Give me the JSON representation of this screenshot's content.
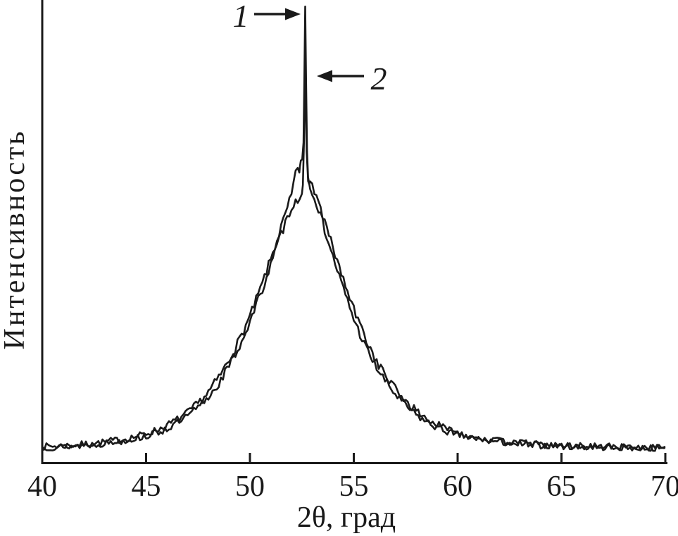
{
  "chart_data": {
    "type": "line",
    "title": "",
    "xlabel": "2θ, град",
    "ylabel": "Интенсивность",
    "xlim": [
      40,
      70
    ],
    "ylim": [
      0,
      105
    ],
    "x_ticks": [
      "40",
      "45",
      "50",
      "55",
      "60",
      "65",
      "70"
    ],
    "x_tick_values": [
      40,
      45,
      50,
      55,
      60,
      65,
      70
    ],
    "y_ticks": [],
    "grid": false,
    "legend_position": "none",
    "line_color": "#1a1a1a",
    "background_color": "#ffffff",
    "noise": {
      "amplitude": 1.0,
      "step": 0.1
    },
    "annotations": [
      {
        "label": "1",
        "arrow_direction": "right",
        "points_at": "sharp peak of curve 1 at 2θ ≈ 52.7°"
      },
      {
        "label": "2",
        "arrow_direction": "left",
        "points_at": "sharp peak of curve 2 at 2θ ≈ 52.7°"
      }
    ],
    "series": [
      {
        "name": "1",
        "description": "broad halo with tall sharp peak",
        "peak_2theta": 52.66,
        "peak_height": 99.8,
        "points": [
          [
            40,
            3.6
          ],
          [
            40.5,
            3.7
          ],
          [
            41,
            3.8
          ],
          [
            41.5,
            3.9
          ],
          [
            42,
            4.1
          ],
          [
            42.5,
            4.3
          ],
          [
            43,
            4.6
          ],
          [
            43.5,
            4.95
          ],
          [
            44,
            5.3
          ],
          [
            44.5,
            5.8
          ],
          [
            45,
            6.4
          ],
          [
            45.5,
            7.2
          ],
          [
            46,
            8.2
          ],
          [
            46.5,
            9.5
          ],
          [
            47,
            11
          ],
          [
            47.5,
            13
          ],
          [
            48,
            15.5
          ],
          [
            48.5,
            18.7
          ],
          [
            49,
            22.5
          ],
          [
            49.5,
            27
          ],
          [
            50,
            32
          ],
          [
            50.5,
            38
          ],
          [
            51,
            44.5
          ],
          [
            51.5,
            51.5
          ],
          [
            51.8,
            55.5
          ],
          [
            52,
            58.5
          ],
          [
            52.1,
            61
          ],
          [
            52.2,
            63
          ],
          [
            52.3,
            64.5
          ],
          [
            52.38,
            64
          ],
          [
            52.45,
            65.5
          ],
          [
            52.52,
            66.5
          ],
          [
            52.58,
            70
          ],
          [
            52.62,
            84
          ],
          [
            52.66,
            99.8
          ],
          [
            52.7,
            84
          ],
          [
            52.75,
            68
          ],
          [
            52.8,
            62.5
          ],
          [
            52.9,
            60.5
          ],
          [
            53,
            59.5
          ],
          [
            53.2,
            57
          ],
          [
            53.5,
            52.5
          ],
          [
            54,
            45
          ],
          [
            54.5,
            38
          ],
          [
            55,
            31.5
          ],
          [
            55.5,
            26
          ],
          [
            56,
            21.5
          ],
          [
            56.5,
            18
          ],
          [
            57,
            15
          ],
          [
            57.5,
            12.5
          ],
          [
            58,
            10.5
          ],
          [
            58.5,
            9
          ],
          [
            59,
            7.8
          ],
          [
            59.5,
            6.9
          ],
          [
            60,
            6.2
          ],
          [
            60.5,
            5.7
          ],
          [
            61,
            5.2
          ],
          [
            61.5,
            4.9
          ],
          [
            62,
            4.6
          ],
          [
            63,
            4.2
          ],
          [
            64,
            3.9
          ],
          [
            65,
            3.7
          ],
          [
            66,
            3.6
          ],
          [
            67,
            3.5
          ],
          [
            68,
            3.4
          ],
          [
            69,
            3.4
          ],
          [
            70,
            3.3
          ]
        ]
      },
      {
        "name": "2",
        "description": "broad halo with shorter sharp peak",
        "peak_2theta": 52.66,
        "peak_height": 85.5,
        "points": [
          [
            40,
            3.4
          ],
          [
            40.5,
            3.5
          ],
          [
            41,
            3.6
          ],
          [
            41.5,
            3.75
          ],
          [
            42,
            3.9
          ],
          [
            42.5,
            4.1
          ],
          [
            43,
            4.3
          ],
          [
            43.5,
            4.6
          ],
          [
            44,
            5
          ],
          [
            44.5,
            5.4
          ],
          [
            45,
            5.9
          ],
          [
            45.5,
            6.6
          ],
          [
            46,
            7.5
          ],
          [
            46.5,
            8.7
          ],
          [
            47,
            10.2
          ],
          [
            47.5,
            12.1
          ],
          [
            48,
            14.4
          ],
          [
            48.5,
            17.4
          ],
          [
            49,
            21.3
          ],
          [
            49.5,
            25.6
          ],
          [
            50,
            30.8
          ],
          [
            50.5,
            36.8
          ],
          [
            51,
            43.2
          ],
          [
            51.5,
            50
          ],
          [
            51.8,
            53.5
          ],
          [
            52,
            56
          ],
          [
            52.1,
            56.8
          ],
          [
            52.2,
            57
          ],
          [
            52.3,
            57.5
          ],
          [
            52.4,
            58
          ],
          [
            52.5,
            59.5
          ],
          [
            52.55,
            61
          ],
          [
            52.6,
            70
          ],
          [
            52.63,
            79
          ],
          [
            52.66,
            85.5
          ],
          [
            52.69,
            78
          ],
          [
            52.73,
            68
          ],
          [
            52.78,
            63
          ],
          [
            52.85,
            61.5
          ],
          [
            53,
            60.5
          ],
          [
            53.2,
            58.5
          ],
          [
            53.5,
            54
          ],
          [
            54,
            47
          ],
          [
            54.5,
            40
          ],
          [
            55,
            33.5
          ],
          [
            55.5,
            28
          ],
          [
            56,
            23
          ],
          [
            56.5,
            19.3
          ],
          [
            57,
            16.2
          ],
          [
            57.5,
            13.6
          ],
          [
            58,
            11.4
          ],
          [
            58.5,
            9.7
          ],
          [
            59,
            8.4
          ],
          [
            59.5,
            7.4
          ],
          [
            60,
            6.6
          ],
          [
            60.5,
            6
          ],
          [
            61,
            5.5
          ],
          [
            61.5,
            5.1
          ],
          [
            62,
            4.8
          ],
          [
            63,
            4.4
          ],
          [
            64,
            4
          ],
          [
            65,
            3.8
          ],
          [
            66,
            3.7
          ],
          [
            67,
            3.6
          ],
          [
            68,
            3.5
          ],
          [
            69,
            3.4
          ],
          [
            70,
            3.4
          ]
        ]
      }
    ]
  }
}
